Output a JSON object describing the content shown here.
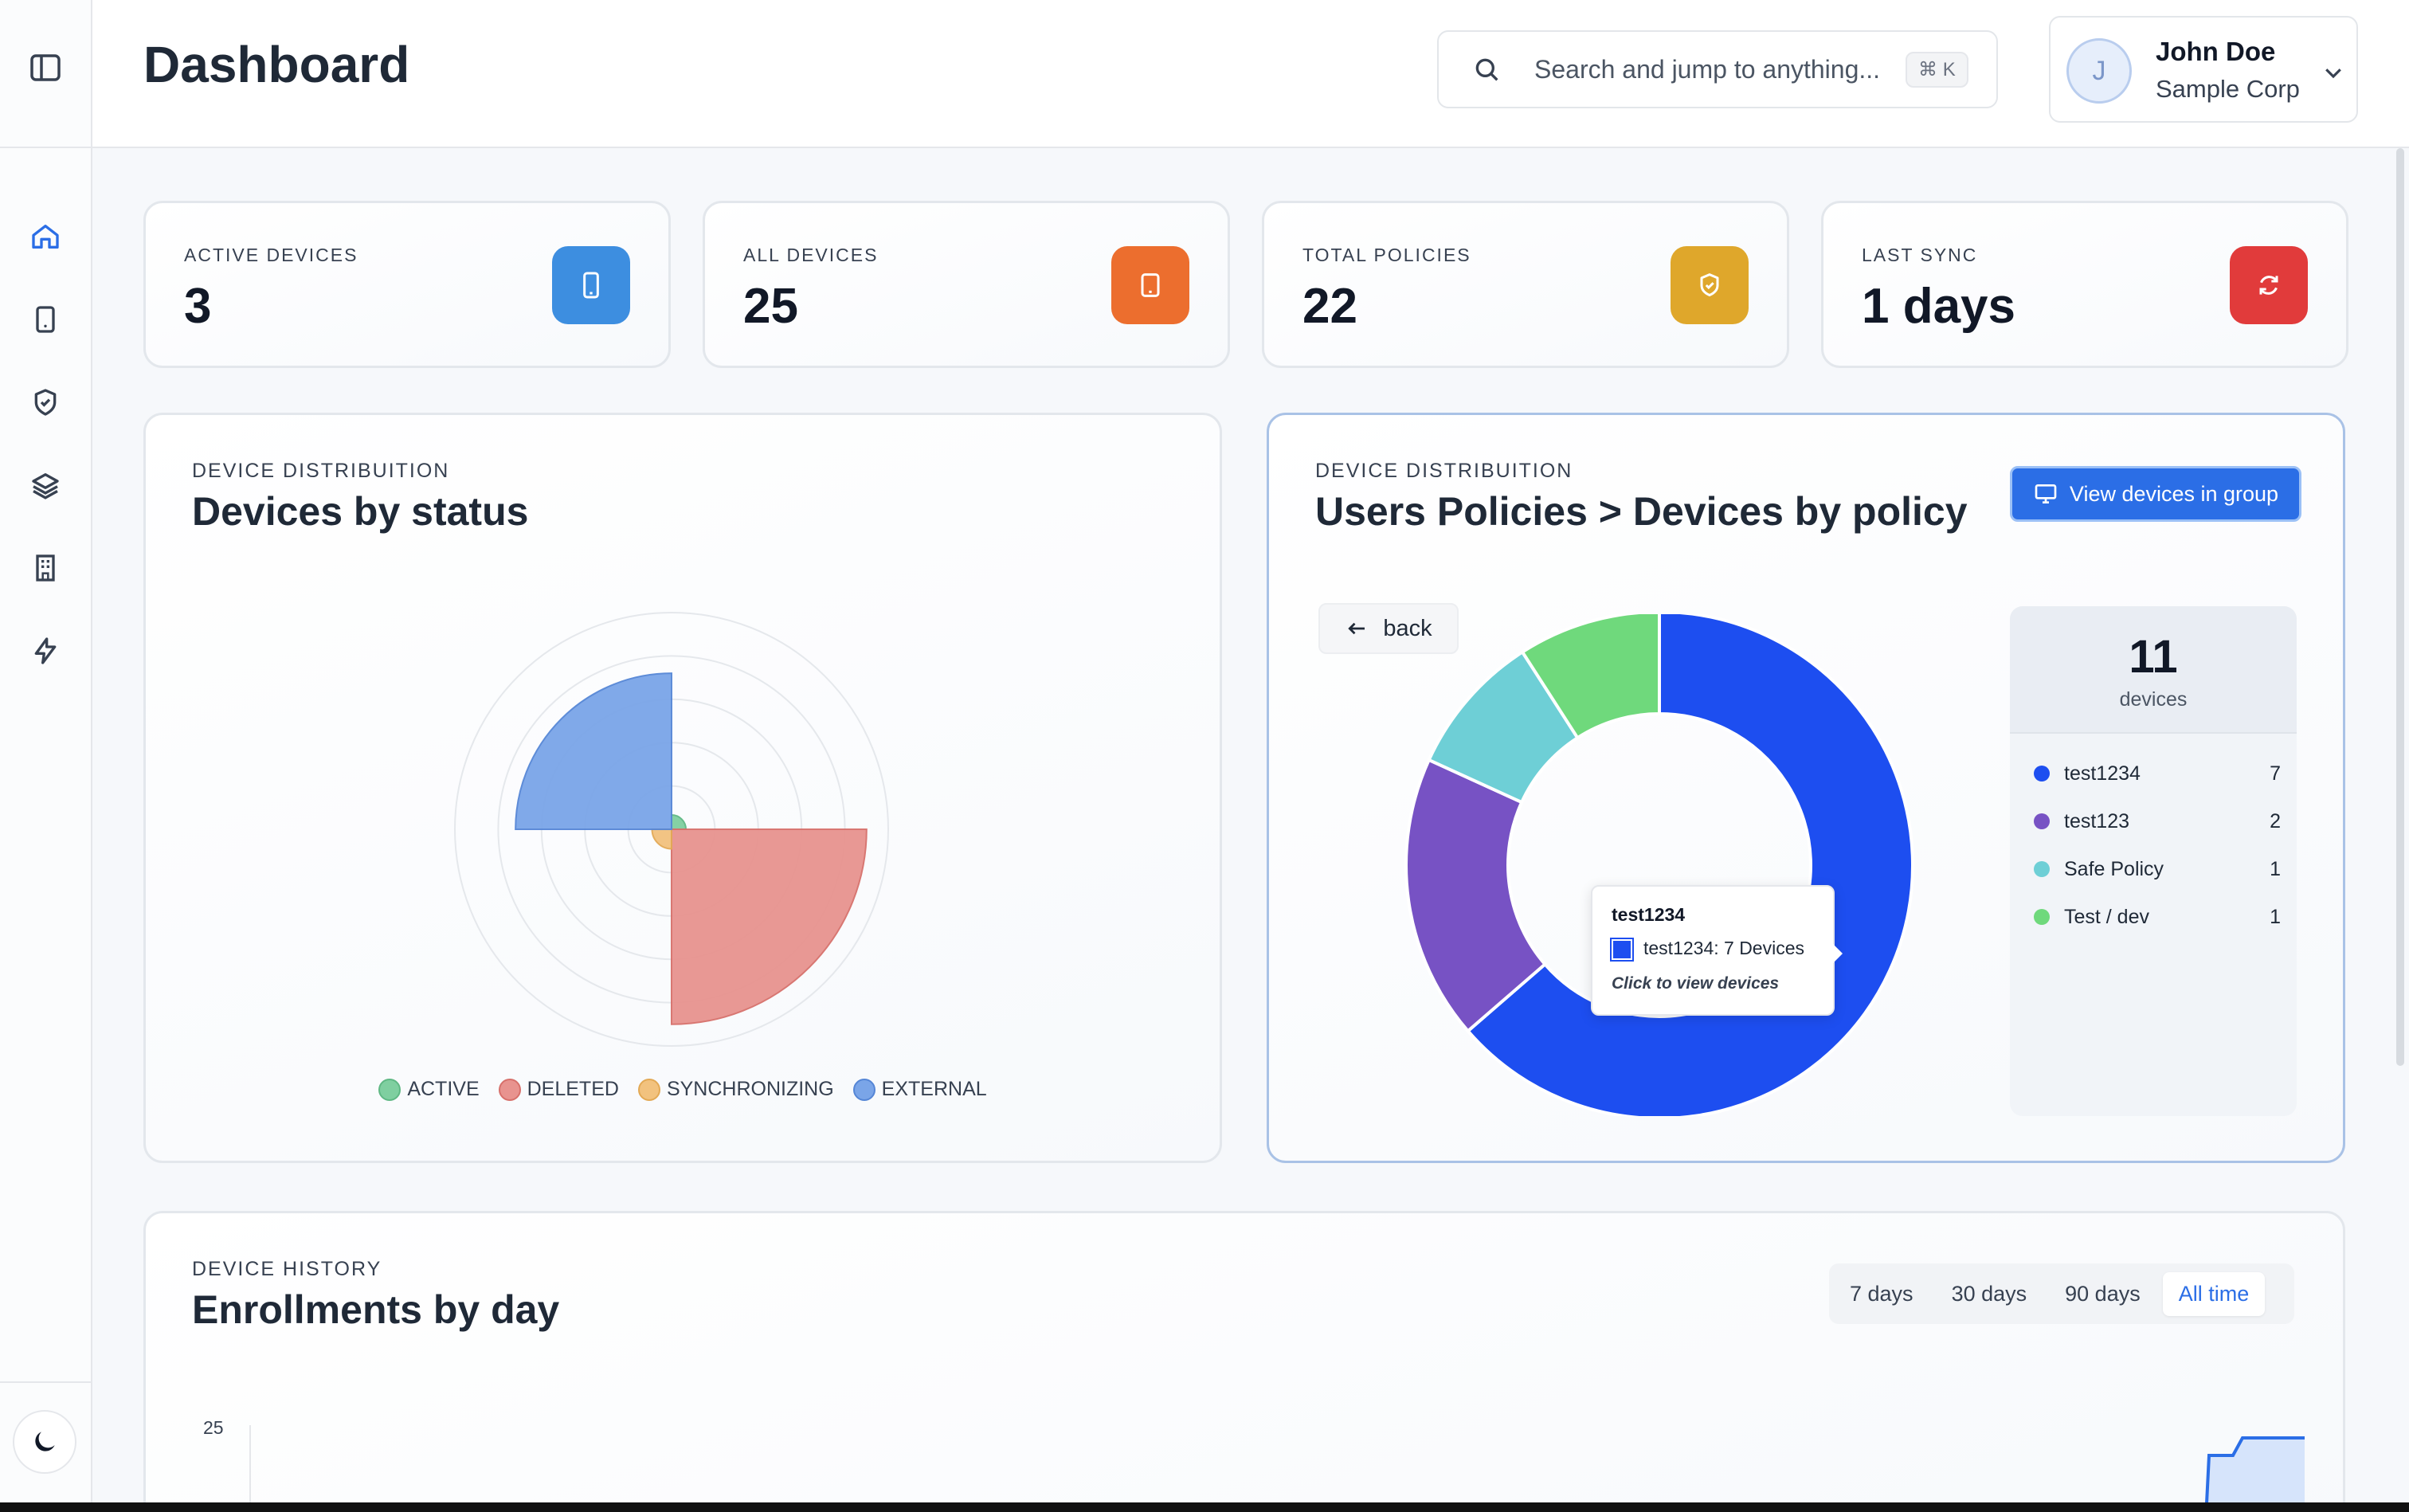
{
  "header": {
    "title": "Dashboard",
    "search_placeholder": "Search and jump to anything...",
    "search_shortcut": "⌘ K"
  },
  "user": {
    "initial": "J",
    "name": "John Doe",
    "org": "Sample Corp"
  },
  "sidebar": {
    "items": [
      {
        "icon": "home-icon"
      },
      {
        "icon": "device-icon"
      },
      {
        "icon": "shield-icon"
      },
      {
        "icon": "layers-icon"
      },
      {
        "icon": "building-icon"
      },
      {
        "icon": "bolt-icon"
      }
    ],
    "theme_icon": "moon-icon"
  },
  "stats": [
    {
      "label": "ACTIVE DEVICES",
      "value": "3",
      "color": "#3d8ee0",
      "icon": "phone-icon"
    },
    {
      "label": "ALL DEVICES",
      "value": "25",
      "color": "#ec6e2e",
      "icon": "tablet-icon"
    },
    {
      "label": "TOTAL POLICIES",
      "value": "22",
      "color": "#dfa72b",
      "icon": "shield-check-icon"
    },
    {
      "label": "LAST SYNC",
      "value": "1 days",
      "color": "#e13b3b",
      "icon": "refresh-icon"
    }
  ],
  "status_card": {
    "eyebrow": "DEVICE DISTRIBUITION",
    "title": "Devices by status"
  },
  "policy_card": {
    "eyebrow": "DEVICE DISTRIBUITION",
    "title": "Users Policies > Devices by policy",
    "view_button": "View devices in group",
    "back_button": "back",
    "panel_count": "11",
    "panel_label": "devices",
    "tooltip": {
      "title": "test1234",
      "line": "test1234: 7 Devices",
      "hint": "Click to view devices"
    }
  },
  "history_card": {
    "eyebrow": "DEVICE HISTORY",
    "title": "Enrollments by day",
    "ranges": [
      "7 days",
      "30 days",
      "90 days",
      "All time"
    ],
    "active_range": "All time",
    "y_tick": "25"
  },
  "chart_data": [
    {
      "type": "polar-area",
      "categories": [
        "ACTIVE",
        "DELETED",
        "SYNCHRONIZING",
        "EXTERNAL"
      ],
      "values": [
        1,
        20,
        2,
        16
      ],
      "colors": [
        "#7fcfa0",
        "#e8938f",
        "#f2c27e",
        "#7aa5e8"
      ],
      "legend": "bottom"
    },
    {
      "type": "donut",
      "categories": [
        "test1234",
        "test123",
        "Safe Policy",
        "Test / dev"
      ],
      "values": [
        7,
        2,
        1,
        1
      ],
      "colors": [
        "#1d4ef0",
        "#7752c4",
        "#6ecfd6",
        "#6fd97c"
      ],
      "total": 11
    },
    {
      "type": "area",
      "y_ticks": [
        "25"
      ],
      "grid": false
    }
  ]
}
